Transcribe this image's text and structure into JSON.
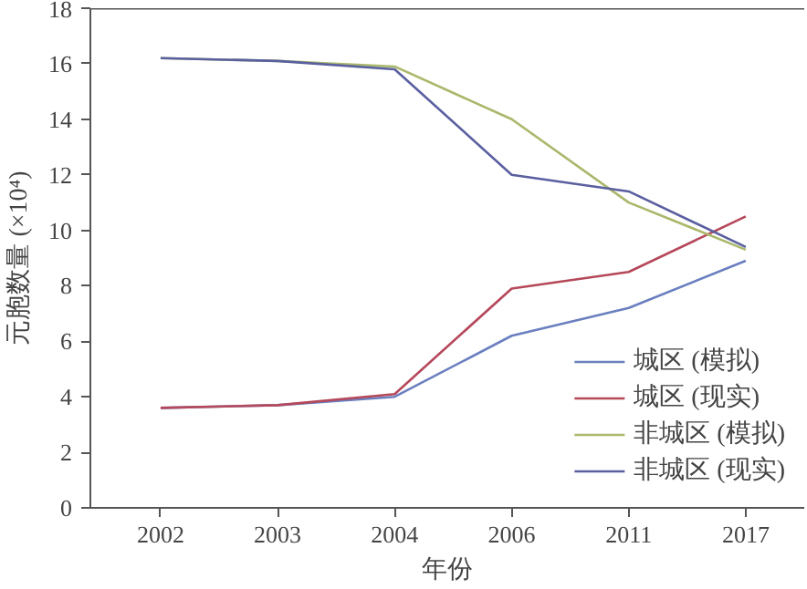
{
  "chart_data": {
    "type": "line",
    "xlabel": "年份",
    "ylabel": "元胞数量 (×10⁴)",
    "categories": [
      "2002",
      "2003",
      "2004",
      "2006",
      "2011",
      "2017"
    ],
    "ylim": [
      0,
      18
    ],
    "yticks": [
      0,
      2,
      4,
      6,
      8,
      10,
      12,
      14,
      16,
      18
    ],
    "grid": false,
    "legend": "bottom right",
    "marker": "none",
    "line_style": "solid",
    "series": [
      {
        "name": "城区 (模拟)",
        "color": "#6a7fbf",
        "values": [
          3.6,
          3.7,
          4.0,
          6.2,
          7.2,
          8.9
        ]
      },
      {
        "name": "城区 (现实)",
        "color": "#b5485a",
        "values": [
          3.6,
          3.7,
          4.1,
          7.9,
          8.5,
          10.5
        ]
      },
      {
        "name": "非城区 (模拟)",
        "color": "#a9b86a",
        "values": [
          16.2,
          16.1,
          15.9,
          14.0,
          11.0,
          9.3
        ]
      },
      {
        "name": "非城区 (现实)",
        "color": "#5a5fa0",
        "values": [
          16.2,
          16.1,
          15.8,
          12.0,
          11.4,
          9.4
        ]
      }
    ]
  }
}
